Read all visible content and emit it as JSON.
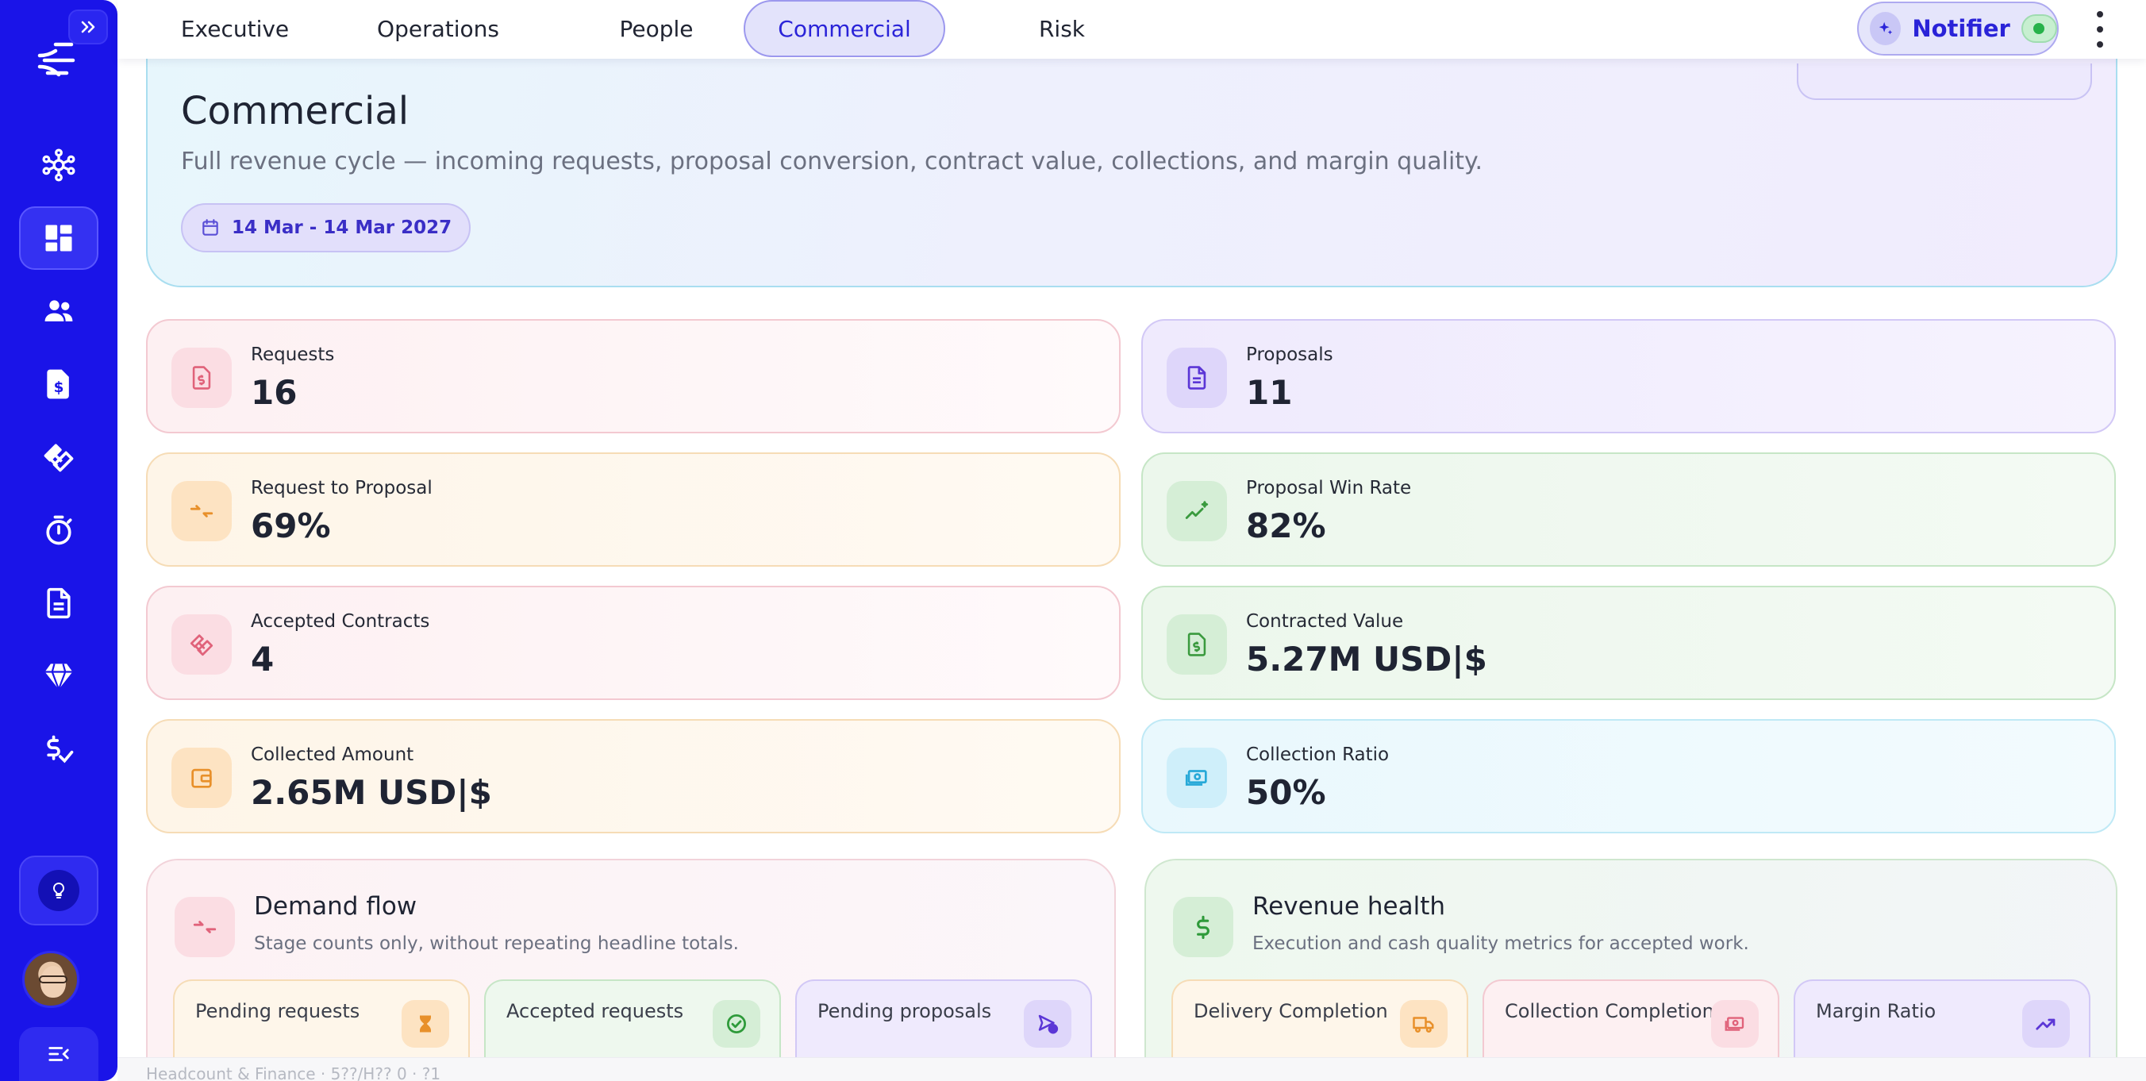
{
  "nav": {
    "tabs": [
      {
        "label": "Executive",
        "active": false
      },
      {
        "label": "Operations",
        "active": false
      },
      {
        "label": "People",
        "active": false
      },
      {
        "label": "Commercial",
        "active": true
      },
      {
        "label": "Risk",
        "active": false
      }
    ],
    "notifier": {
      "label": "Notifier",
      "enabled": true
    }
  },
  "sidebar": {
    "items": [
      "network-icon",
      "dashboard-icon",
      "people-icon",
      "invoice-dollar-icon",
      "handshake-icon",
      "stopwatch-icon",
      "document-icon",
      "gem-icon",
      "dollar-check-icon"
    ],
    "active_item": "dashboard-icon",
    "accent": "#1a14e8"
  },
  "hero": {
    "title": "Commercial",
    "subtitle": "Full revenue cycle — incoming requests, proposal conversion, contract value, collections, and margin quality.",
    "date_range": "14 Mar - 14 Mar 2027"
  },
  "kpis": [
    {
      "label": "Requests",
      "value": "16",
      "icon": "invoice-dollar-icon"
    },
    {
      "label": "Proposals",
      "value": "11",
      "icon": "document-icon"
    },
    {
      "label": "Request to Proposal",
      "value": "69%",
      "icon": "arrows-in-icon"
    },
    {
      "label": "Proposal Win Rate",
      "value": "82%",
      "icon": "trend-sparkle-icon"
    },
    {
      "label": "Accepted Contracts",
      "value": "4",
      "icon": "handshake-icon"
    },
    {
      "label": "Contracted Value",
      "value": "5.27M USD|$",
      "icon": "contract-dollar-icon"
    },
    {
      "label": "Collected Amount",
      "value": "2.65M USD|$",
      "icon": "wallet-icon"
    },
    {
      "label": "Collection Ratio",
      "value": "50%",
      "icon": "cash-icon"
    }
  ],
  "sections": {
    "demand": {
      "title": "Demand flow",
      "subtitle": "Stage counts only, without repeating headline totals.",
      "stages": [
        {
          "label": "Pending requests",
          "icon": "hourglass-icon"
        },
        {
          "label": "Accepted requests",
          "icon": "check-circle-icon"
        },
        {
          "label": "Pending proposals",
          "icon": "send-clock-icon"
        }
      ]
    },
    "revenue": {
      "title": "Revenue health",
      "subtitle": "Execution and cash quality metrics for accepted work.",
      "stages": [
        {
          "label": "Delivery Completion",
          "icon": "truck-icon"
        },
        {
          "label": "Collection Completion",
          "icon": "cash-icon"
        },
        {
          "label": "Margin Ratio",
          "icon": "trend-up-icon"
        }
      ]
    }
  },
  "footer_peek": "Headcount & Finance · 5??/H?? 0 · ?1"
}
